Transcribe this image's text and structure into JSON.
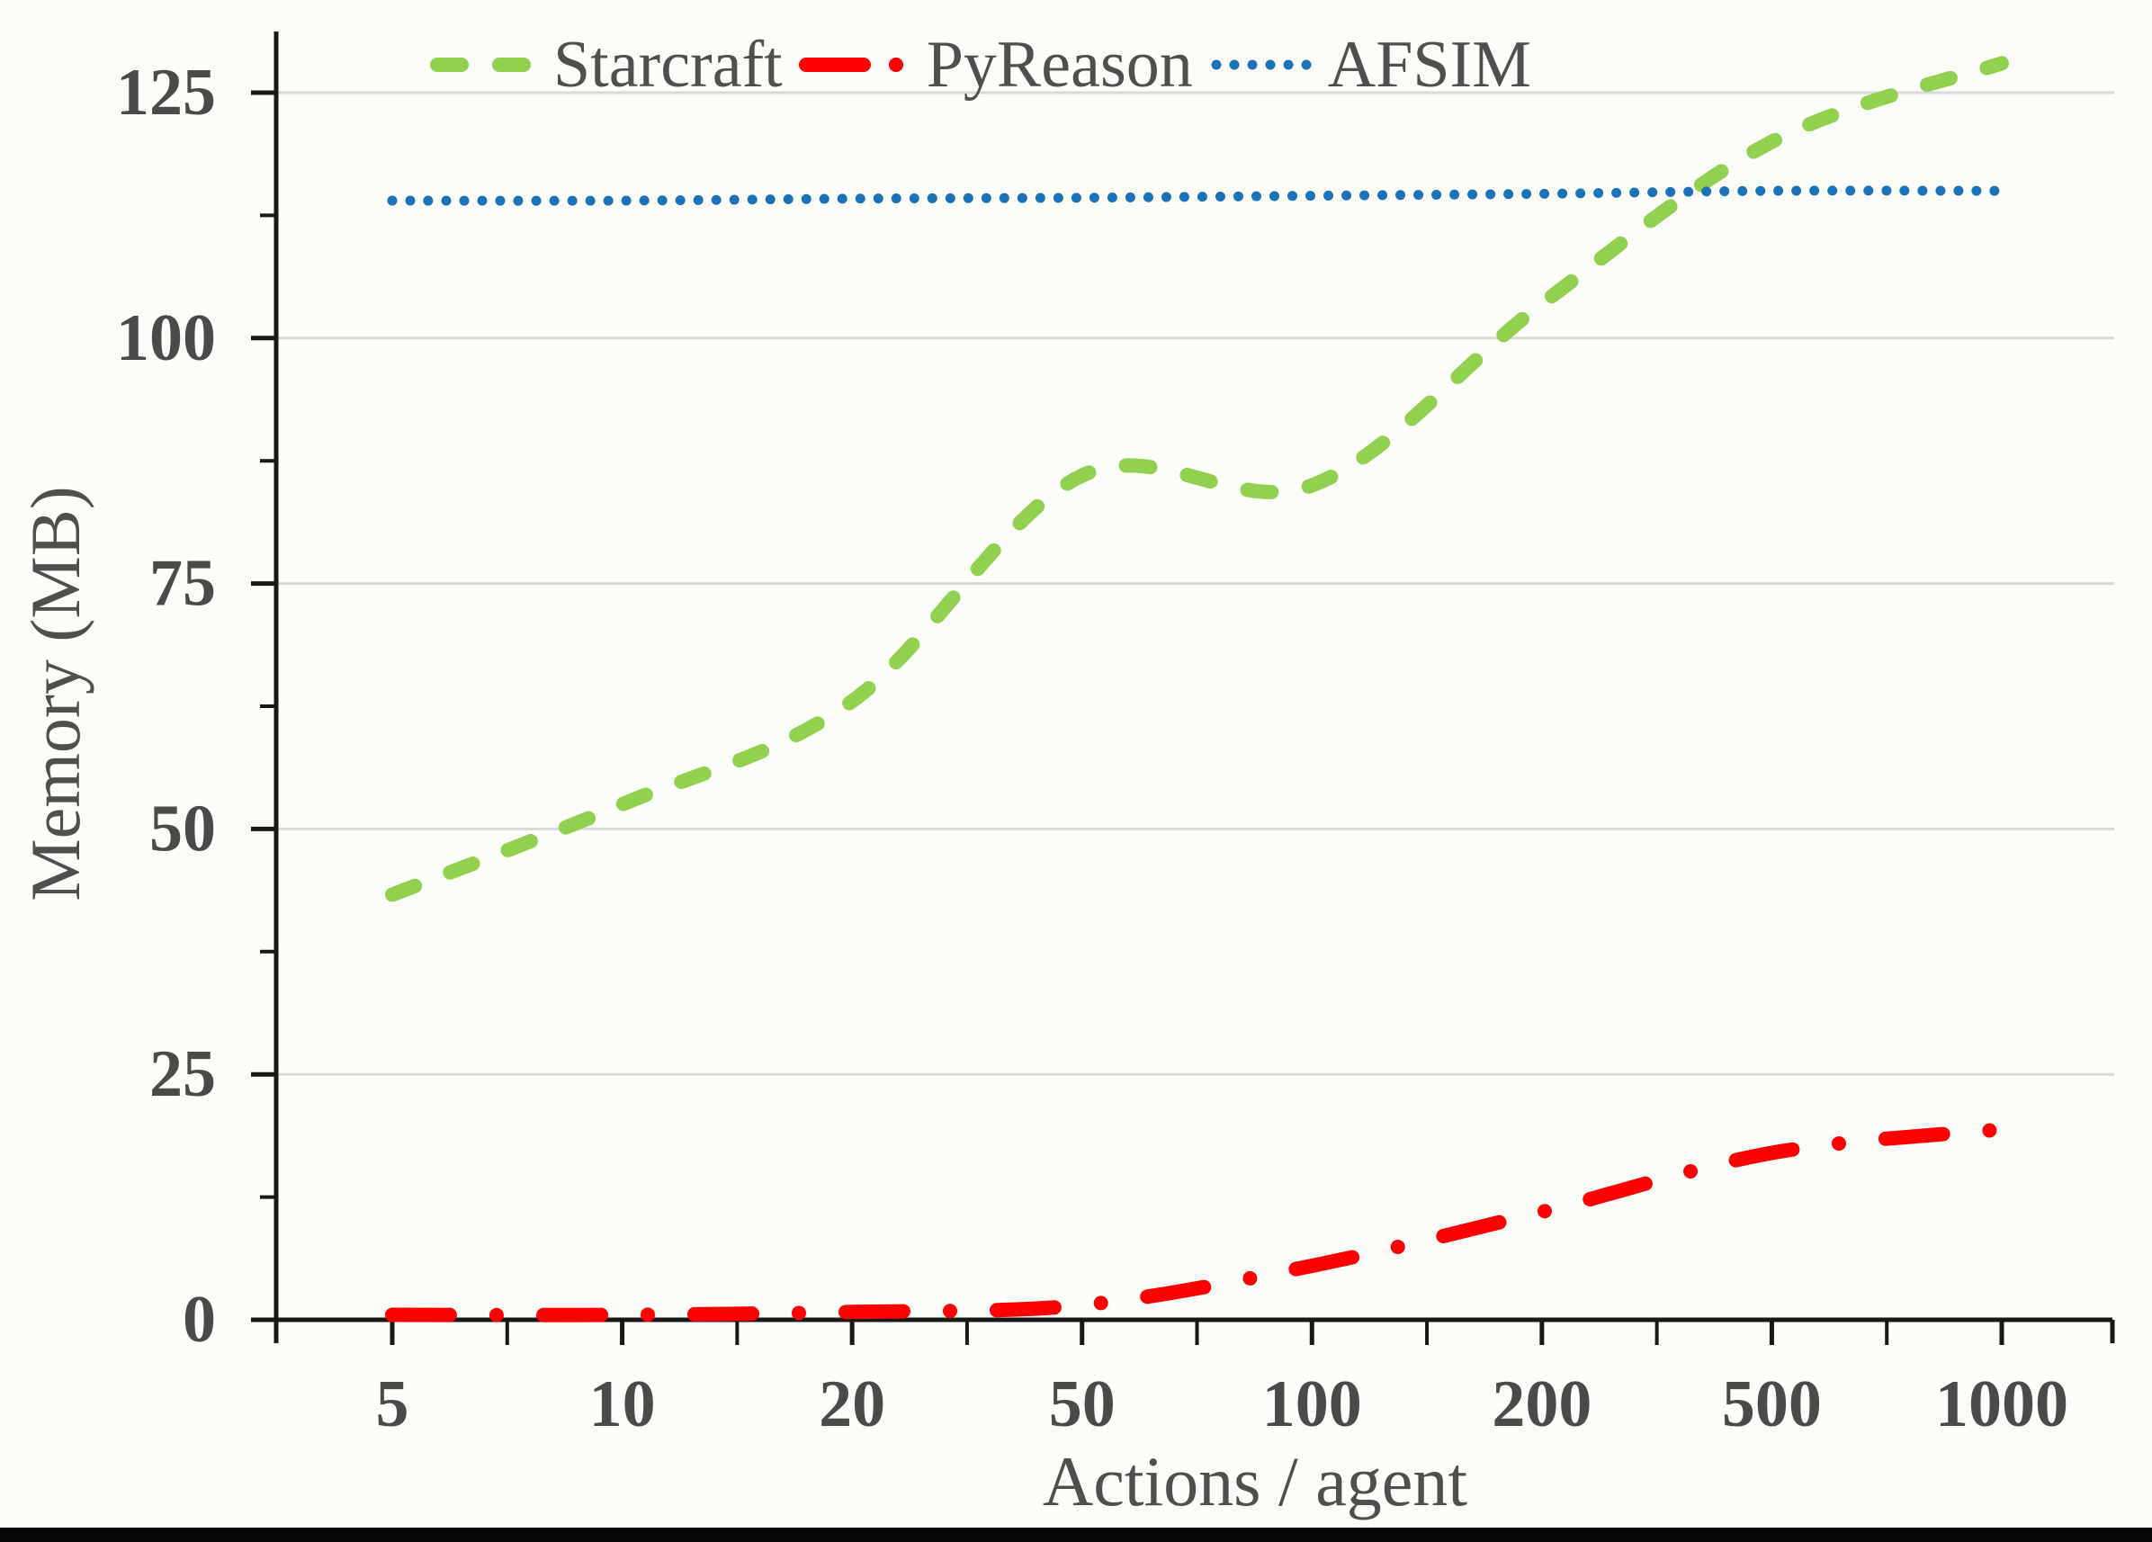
{
  "chart_data": {
    "type": "line",
    "title": "",
    "xlabel": "Actions / agent",
    "ylabel": "Memory (MB)",
    "x_scale": "log-like, ticks equally spaced",
    "x_ticks": [
      5,
      10,
      20,
      50,
      100,
      200,
      500,
      1000
    ],
    "x_tick_labels": [
      "5",
      "10",
      "20",
      "50",
      "100",
      "200",
      "500",
      "1000"
    ],
    "y_ticks": [
      0,
      25,
      50,
      75,
      100,
      125
    ],
    "y_tick_labels": [
      "0",
      "25",
      "50",
      "75",
      "100",
      "125"
    ],
    "y_minor_ticks": [
      12.5,
      37.5,
      62.5,
      87.5,
      112.5
    ],
    "ylim": [
      0,
      131
    ],
    "grid": "horizontal gridlines at major y ticks",
    "legend_position": "top-center, single row",
    "series": [
      {
        "name": "Starcraft",
        "color": "#92d050",
        "style": "dashed",
        "x": [
          5,
          10,
          20,
          50,
          100,
          200,
          500,
          1000
        ],
        "values": [
          43.3,
          52.5,
          63,
          86,
          85,
          103.5,
          120,
          128
        ]
      },
      {
        "name": "PyReason",
        "color": "#fe0000",
        "style": "dash-dot",
        "x": [
          5,
          10,
          20,
          50,
          100,
          200,
          500,
          1000
        ],
        "values": [
          0.5,
          0.5,
          0.8,
          1.5,
          5.5,
          11,
          17,
          19.4
        ]
      },
      {
        "name": "AFSIM",
        "color": "#1a72b8",
        "style": "dotted",
        "x": [
          5,
          10,
          20,
          50,
          100,
          200,
          500,
          1000
        ],
        "values": [
          114,
          114,
          114.2,
          114.3,
          114.5,
          114.7,
          115,
          115
        ]
      }
    ]
  },
  "colors": {
    "tick_label": "#4a4a4a",
    "axis_line": "#181818",
    "gridline": "#d9d9d9",
    "axis_title": "#4f4f4f",
    "background": "#fcfcf9",
    "bottom_bar": "#060606"
  }
}
